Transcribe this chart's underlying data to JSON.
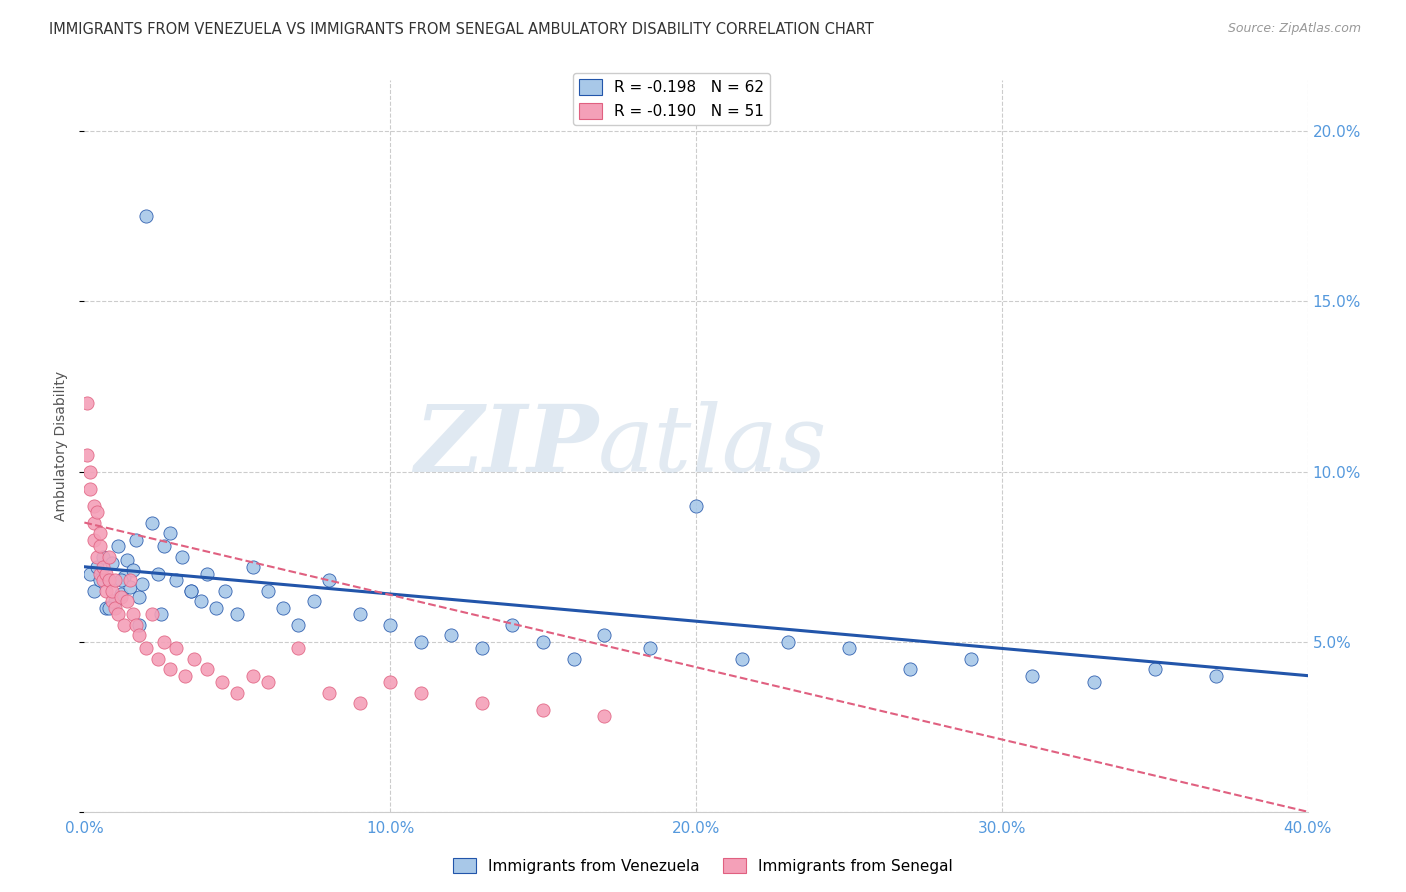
{
  "title": "IMMIGRANTS FROM VENEZUELA VS IMMIGRANTS FROM SENEGAL AMBULATORY DISABILITY CORRELATION CHART",
  "source": "Source: ZipAtlas.com",
  "ylabel": "Ambulatory Disability",
  "yticks": [
    0.0,
    0.05,
    0.1,
    0.15,
    0.2
  ],
  "ytick_labels": [
    "",
    "5.0%",
    "10.0%",
    "15.0%",
    "20.0%"
  ],
  "xticks": [
    0.0,
    0.1,
    0.2,
    0.3,
    0.4
  ],
  "xlim": [
    0.0,
    0.4
  ],
  "ylim": [
    0.0,
    0.215
  ],
  "legend_r1": "R = -0.198   N = 62",
  "legend_r2": "R = -0.190   N = 51",
  "color_venezuela": "#a8c8e8",
  "color_senegal": "#f4a0b8",
  "line_color_venezuela": "#2255aa",
  "line_color_senegal": "#e06080",
  "watermark_zip": "ZIP",
  "watermark_atlas": "atlas",
  "venezuela_x": [
    0.002,
    0.003,
    0.004,
    0.005,
    0.006,
    0.007,
    0.008,
    0.009,
    0.01,
    0.011,
    0.012,
    0.013,
    0.014,
    0.015,
    0.016,
    0.017,
    0.018,
    0.019,
    0.02,
    0.022,
    0.024,
    0.026,
    0.028,
    0.03,
    0.032,
    0.035,
    0.038,
    0.04,
    0.043,
    0.046,
    0.05,
    0.055,
    0.06,
    0.065,
    0.07,
    0.075,
    0.08,
    0.09,
    0.1,
    0.11,
    0.12,
    0.13,
    0.14,
    0.15,
    0.16,
    0.17,
    0.185,
    0.2,
    0.215,
    0.23,
    0.25,
    0.27,
    0.29,
    0.31,
    0.33,
    0.35,
    0.37,
    0.008,
    0.012,
    0.018,
    0.025,
    0.035
  ],
  "venezuela_y": [
    0.07,
    0.065,
    0.072,
    0.068,
    0.075,
    0.06,
    0.068,
    0.073,
    0.062,
    0.078,
    0.064,
    0.069,
    0.074,
    0.066,
    0.071,
    0.08,
    0.063,
    0.067,
    0.175,
    0.085,
    0.07,
    0.078,
    0.082,
    0.068,
    0.075,
    0.065,
    0.062,
    0.07,
    0.06,
    0.065,
    0.058,
    0.072,
    0.065,
    0.06,
    0.055,
    0.062,
    0.068,
    0.058,
    0.055,
    0.05,
    0.052,
    0.048,
    0.055,
    0.05,
    0.045,
    0.052,
    0.048,
    0.09,
    0.045,
    0.05,
    0.048,
    0.042,
    0.045,
    0.04,
    0.038,
    0.042,
    0.04,
    0.06,
    0.068,
    0.055,
    0.058,
    0.065
  ],
  "senegal_x": [
    0.001,
    0.001,
    0.002,
    0.002,
    0.003,
    0.003,
    0.003,
    0.004,
    0.004,
    0.005,
    0.005,
    0.005,
    0.006,
    0.006,
    0.007,
    0.007,
    0.008,
    0.008,
    0.009,
    0.009,
    0.01,
    0.01,
    0.011,
    0.012,
    0.013,
    0.014,
    0.015,
    0.016,
    0.017,
    0.018,
    0.02,
    0.022,
    0.024,
    0.026,
    0.028,
    0.03,
    0.033,
    0.036,
    0.04,
    0.045,
    0.05,
    0.055,
    0.06,
    0.07,
    0.08,
    0.09,
    0.1,
    0.11,
    0.13,
    0.15,
    0.17
  ],
  "senegal_y": [
    0.12,
    0.105,
    0.095,
    0.1,
    0.09,
    0.085,
    0.08,
    0.088,
    0.075,
    0.078,
    0.07,
    0.082,
    0.068,
    0.072,
    0.065,
    0.07,
    0.075,
    0.068,
    0.062,
    0.065,
    0.06,
    0.068,
    0.058,
    0.063,
    0.055,
    0.062,
    0.068,
    0.058,
    0.055,
    0.052,
    0.048,
    0.058,
    0.045,
    0.05,
    0.042,
    0.048,
    0.04,
    0.045,
    0.042,
    0.038,
    0.035,
    0.04,
    0.038,
    0.048,
    0.035,
    0.032,
    0.038,
    0.035,
    0.032,
    0.03,
    0.028
  ]
}
